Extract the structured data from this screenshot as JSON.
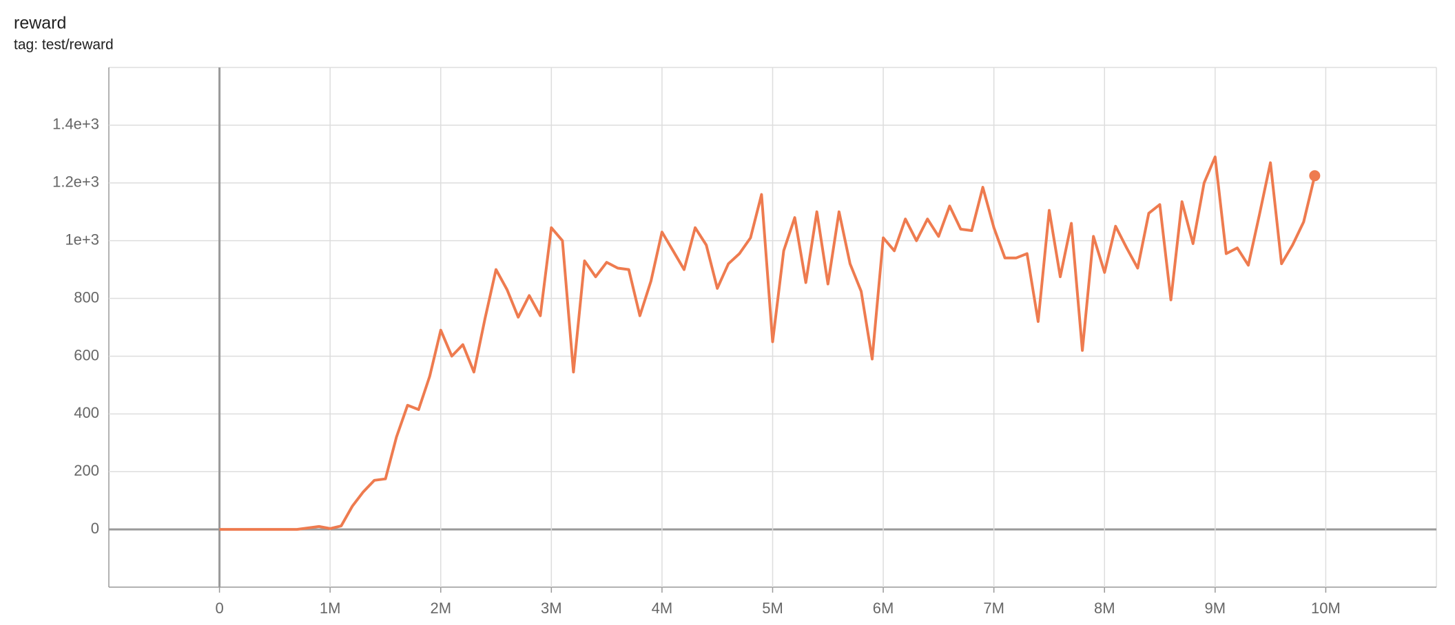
{
  "chart_data": {
    "type": "line",
    "title": "reward",
    "subtitle": "tag: test/reward",
    "x": [
      0,
      100000,
      200000,
      300000,
      400000,
      500000,
      600000,
      700000,
      800000,
      900000,
      1000000,
      1100000,
      1200000,
      1300000,
      1400000,
      1500000,
      1600000,
      1700000,
      1800000,
      1900000,
      2000000,
      2100000,
      2200000,
      2300000,
      2400000,
      2500000,
      2600000,
      2700000,
      2800000,
      2900000,
      3000000,
      3100000,
      3200000,
      3300000,
      3400000,
      3500000,
      3600000,
      3700000,
      3800000,
      3900000,
      4000000,
      4100000,
      4200000,
      4300000,
      4400000,
      4500000,
      4600000,
      4700000,
      4800000,
      4900000,
      5000000,
      5100000,
      5200000,
      5300000,
      5400000,
      5500000,
      5600000,
      5700000,
      5800000,
      5900000,
      6000000,
      6100000,
      6200000,
      6300000,
      6400000,
      6500000,
      6600000,
      6700000,
      6800000,
      6900000,
      7000000,
      7100000,
      7200000,
      7300000,
      7400000,
      7500000,
      7600000,
      7700000,
      7800000,
      7900000,
      8000000,
      8100000,
      8200000,
      8300000,
      8400000,
      8500000,
      8600000,
      8700000,
      8800000,
      8900000,
      9000000,
      9100000,
      9200000,
      9300000,
      9400000,
      9500000,
      9600000,
      9700000,
      9800000,
      9900000
    ],
    "series": [
      {
        "color": "#ee7b4f",
        "values": [
          0,
          0,
          0,
          0,
          0,
          0,
          0,
          0,
          5,
          10,
          3,
          12,
          80,
          130,
          170,
          175,
          320,
          430,
          415,
          530,
          690,
          600,
          640,
          545,
          730,
          900,
          830,
          735,
          810,
          740,
          1045,
          1000,
          545,
          930,
          875,
          925,
          905,
          900,
          740,
          860,
          1030,
          965,
          900,
          1045,
          985,
          835,
          920,
          955,
          1010,
          1160,
          650,
          965,
          1080,
          855,
          1100,
          850,
          1100,
          920,
          825,
          590,
          1010,
          965,
          1075,
          1000,
          1075,
          1015,
          1120,
          1040,
          1035,
          1185,
          1045,
          940,
          940,
          955,
          720,
          1105,
          875,
          1060,
          620,
          1015,
          890,
          1050,
          975,
          905,
          1095,
          1125,
          795,
          1135,
          990,
          1200,
          1290,
          955,
          975,
          915,
          1090,
          1270,
          920,
          985,
          1065,
          1225
        ]
      }
    ],
    "xlim": [
      -1000000,
      11000000
    ],
    "xticks": [
      0,
      {
        "value": 1000000,
        "label": "1M"
      },
      {
        "value": 2000000,
        "label": "2M"
      },
      {
        "value": 3000000,
        "label": "3M"
      },
      {
        "value": 4000000,
        "label": "4M"
      },
      {
        "value": 5000000,
        "label": "5M"
      },
      {
        "value": 6000000,
        "label": "6M"
      },
      {
        "value": 7000000,
        "label": "7M"
      },
      {
        "value": 8000000,
        "label": "8M"
      },
      {
        "value": 9000000,
        "label": "9M"
      },
      {
        "value": 10000000,
        "label": "10M"
      }
    ],
    "ylim": [
      -200,
      1600
    ],
    "yticks": [
      0,
      200,
      400,
      600,
      800,
      {
        "value": 1000,
        "label": "1e+3"
      },
      {
        "value": 1200,
        "label": "1.2e+3"
      },
      {
        "value": 1400,
        "label": "1.4e+3"
      }
    ],
    "grid": true
  }
}
